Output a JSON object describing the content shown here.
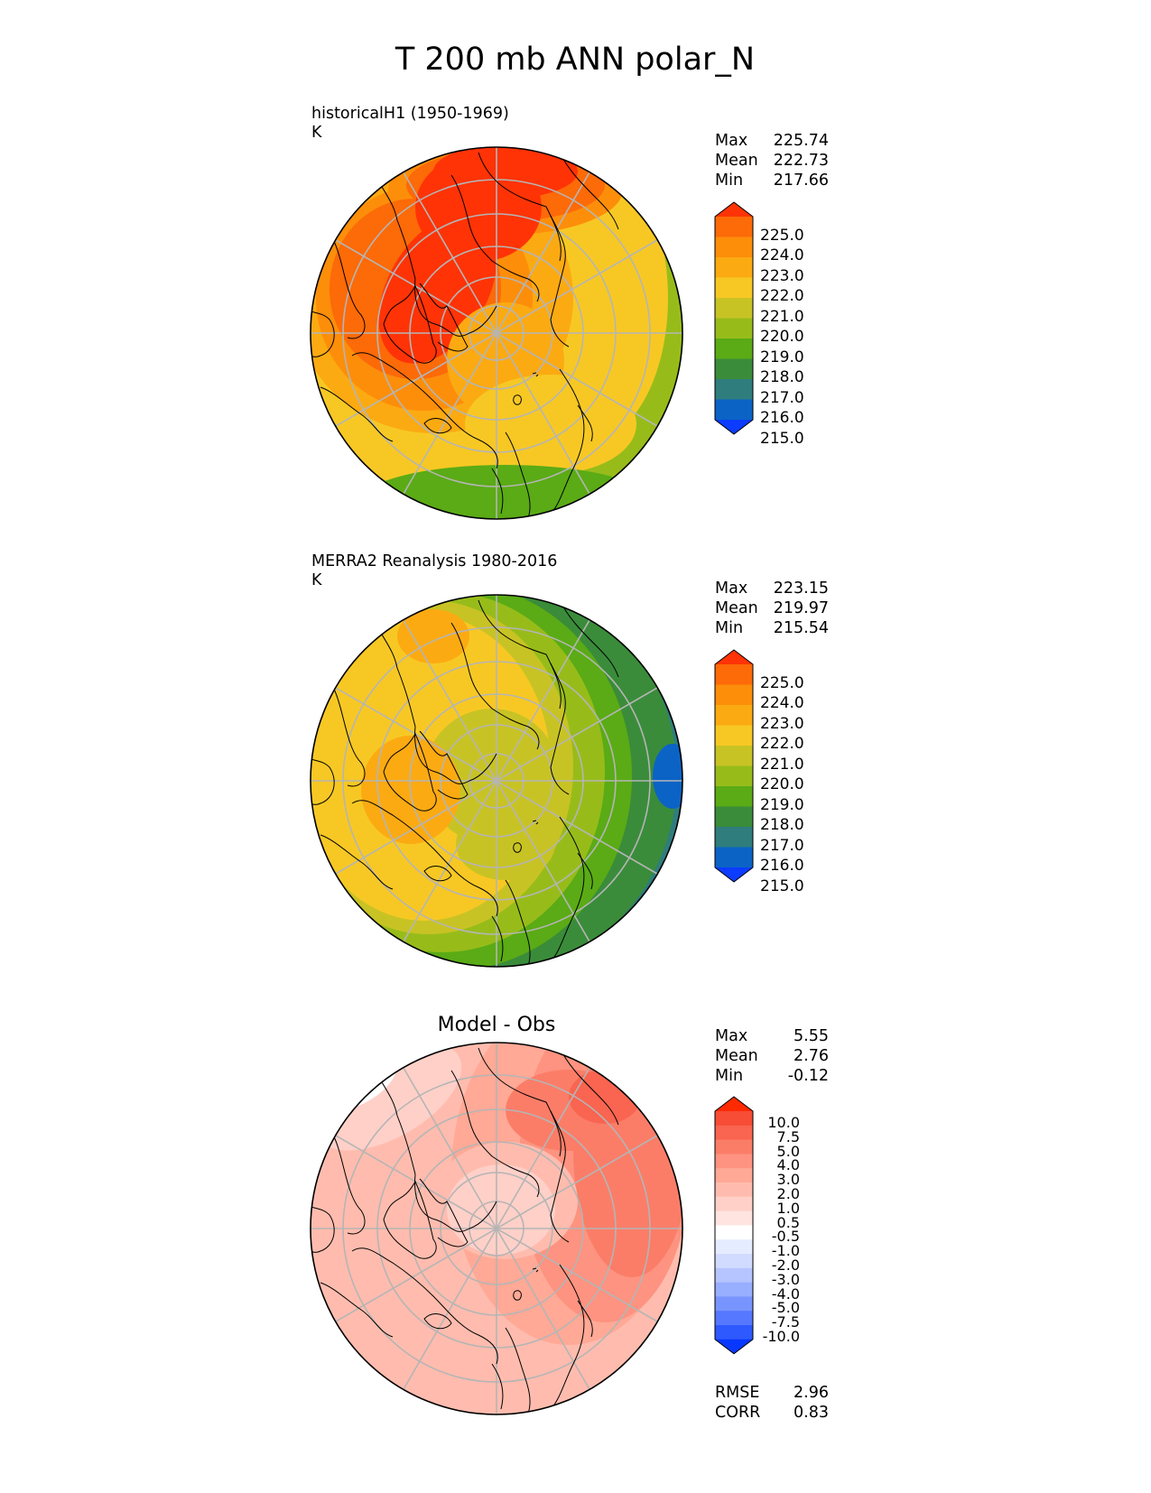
{
  "figure": {
    "title": "T 200 mb ANN polar_N"
  },
  "colors": {
    "coastline": "#000000",
    "grid": "#b5b5b5",
    "abs_scale": [
      "#0b3cff",
      "#0b63c6",
      "#2f7d7d",
      "#3a8c3a",
      "#5aab15",
      "#97bc1a",
      "#c8c324",
      "#f7c824",
      "#fcaa12",
      "#fd8e0a",
      "#fd6a08",
      "#ff3306"
    ],
    "diff_scale": [
      "#0838ff",
      "#2e59ff",
      "#5677ff",
      "#7895ff",
      "#98aeff",
      "#b6c5ff",
      "#d1dbff",
      "#e6ecff",
      "#ffffff",
      "#ffe4e0",
      "#ffd0c8",
      "#ffbcae",
      "#ffa996",
      "#fd9380",
      "#fb7d68",
      "#f96550",
      "#f74c36",
      "#ff2a00"
    ]
  },
  "panels": [
    {
      "id": "test",
      "title": "historicalH1 (1950-1969)",
      "units": "K",
      "stats": [
        {
          "label": "Max",
          "value": "225.74"
        },
        {
          "label": "Mean",
          "value": "222.73"
        },
        {
          "label": "Min",
          "value": "217.66"
        }
      ],
      "colorbar_labels": [
        "225.0",
        "224.0",
        "223.0",
        "222.0",
        "221.0",
        "220.0",
        "219.0",
        "218.0",
        "217.0",
        "216.0",
        "215.0"
      ]
    },
    {
      "id": "reference",
      "title": "MERRA2 Reanalysis 1980-2016",
      "units": "K",
      "stats": [
        {
          "label": "Max",
          "value": "223.15"
        },
        {
          "label": "Mean",
          "value": "219.97"
        },
        {
          "label": "Min",
          "value": "215.54"
        }
      ],
      "colorbar_labels": [
        "225.0",
        "224.0",
        "223.0",
        "222.0",
        "221.0",
        "220.0",
        "219.0",
        "218.0",
        "217.0",
        "216.0",
        "215.0"
      ]
    },
    {
      "id": "difference",
      "title": "Model - Obs",
      "stats": [
        {
          "label": "Max",
          "value": "5.55"
        },
        {
          "label": "Mean",
          "value": "2.76"
        },
        {
          "label": "Min",
          "value": "-0.12"
        }
      ],
      "colorbar_labels": [
        "10.0",
        "7.5",
        "5.0",
        "4.0",
        "3.0",
        "2.0",
        "1.0",
        "0.5",
        "-0.5",
        "-1.0",
        "-2.0",
        "-3.0",
        "-4.0",
        "-5.0",
        "-7.5",
        "-10.0"
      ],
      "metrics": [
        {
          "label": "RMSE",
          "value": "2.96"
        },
        {
          "label": "CORR",
          "value": "0.83"
        }
      ]
    }
  ],
  "chart_data": [
    {
      "type": "heatmap",
      "projection": "north polar stereographic",
      "title": "historicalH1 (1950-1969)",
      "units": "K",
      "field": "air temperature at 200 mb, annual mean",
      "colorbar_levels": [
        215,
        216,
        217,
        218,
        219,
        220,
        221,
        222,
        223,
        224,
        225
      ],
      "extend": "both",
      "max": 225.74,
      "mean": 222.73,
      "min": 217.66
    },
    {
      "type": "heatmap",
      "projection": "north polar stereographic",
      "title": "MERRA2 Reanalysis 1980-2016",
      "units": "K",
      "field": "air temperature at 200 mb, annual mean",
      "colorbar_levels": [
        215,
        216,
        217,
        218,
        219,
        220,
        221,
        222,
        223,
        224,
        225
      ],
      "extend": "both",
      "max": 223.15,
      "mean": 219.97,
      "min": 215.54
    },
    {
      "type": "heatmap",
      "projection": "north polar stereographic",
      "title": "Model - Obs",
      "colorbar_levels": [
        -10,
        -7.5,
        -5,
        -4,
        -3,
        -2,
        -1,
        -0.5,
        0.5,
        1,
        2,
        3,
        4,
        5,
        7.5,
        10
      ],
      "extend": "both",
      "max": 5.55,
      "mean": 2.76,
      "min": -0.12,
      "rmse": 2.96,
      "corr": 0.83
    }
  ]
}
